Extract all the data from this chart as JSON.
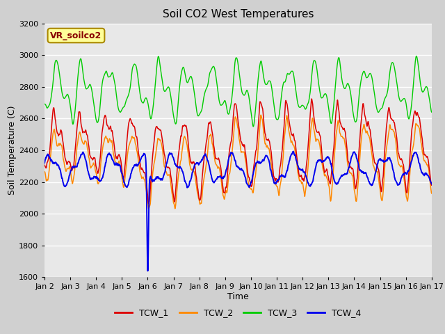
{
  "title": "Soil CO2 West Temperatures",
  "xlabel": "Time",
  "ylabel": "Soil Temperature (C)",
  "ylim": [
    1600,
    3200
  ],
  "xlim_days": [
    2,
    17
  ],
  "yticks": [
    1600,
    1800,
    2000,
    2200,
    2400,
    2600,
    2800,
    3000,
    3200
  ],
  "xtick_labels": [
    "Jan 2",
    "Jan 3",
    "Jan 4",
    "Jan 5",
    "Jan 6",
    "Jan 7",
    "Jan 8",
    "Jan 9",
    "Jan 10",
    "Jan 11",
    "Jan 12",
    "Jan 13",
    "Jan 14",
    "Jan 15",
    "Jan 16",
    "Jan 17"
  ],
  "legend_label": "VR_soilco2",
  "line_colors": {
    "TCW_1": "#dd0000",
    "TCW_2": "#ff8800",
    "TCW_3": "#00cc00",
    "TCW_4": "#0000ee"
  },
  "fig_bg_color": "#d0d0d0",
  "plot_bg_color": "#e8e8e8",
  "grid_color": "#ffffff",
  "title_fontsize": 11,
  "axis_label_fontsize": 9,
  "tick_fontsize": 8,
  "legend_box_facecolor": "#ffff99",
  "legend_box_edgecolor": "#aa8800",
  "legend_label_color": "#880000",
  "n_points": 7200,
  "days": 15
}
